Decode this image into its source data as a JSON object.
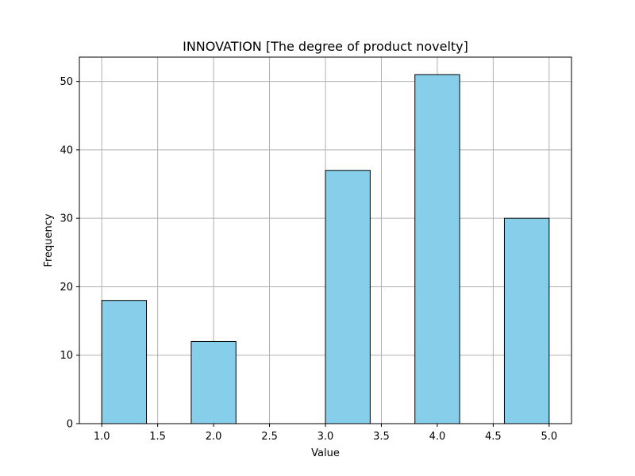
{
  "chart_data": {
    "type": "bar",
    "title": "INNOVATION [The degree of product novelty]",
    "xlabel": "Value",
    "ylabel": "Frequency",
    "bins": [
      {
        "start": 1.0,
        "end": 1.4,
        "value": 18
      },
      {
        "start": 1.4,
        "end": 1.8,
        "value": 0
      },
      {
        "start": 1.8,
        "end": 2.2,
        "value": 12
      },
      {
        "start": 2.2,
        "end": 2.6,
        "value": 0
      },
      {
        "start": 2.6,
        "end": 3.0,
        "value": 0
      },
      {
        "start": 3.0,
        "end": 3.4,
        "value": 37
      },
      {
        "start": 3.4,
        "end": 3.8,
        "value": 0
      },
      {
        "start": 3.8,
        "end": 4.2,
        "value": 51
      },
      {
        "start": 4.2,
        "end": 4.6,
        "value": 0
      },
      {
        "start": 4.6,
        "end": 5.0,
        "value": 30
      }
    ],
    "xlim": [
      0.8,
      5.2
    ],
    "ylim": [
      0,
      53.55
    ],
    "xticks": [
      1.0,
      1.5,
      2.0,
      2.5,
      3.0,
      3.5,
      4.0,
      4.5,
      5.0
    ],
    "xtick_labels": [
      "1.0",
      "1.5",
      "2.0",
      "2.5",
      "3.0",
      "3.5",
      "4.0",
      "4.5",
      "5.0"
    ],
    "yticks": [
      0,
      10,
      20,
      30,
      40,
      50
    ],
    "ytick_labels": [
      "0",
      "10",
      "20",
      "30",
      "40",
      "50"
    ],
    "grid": true,
    "bar_color": "#87CEEB",
    "edge_color": "#000000",
    "grid_color": "#b0b0b0"
  }
}
